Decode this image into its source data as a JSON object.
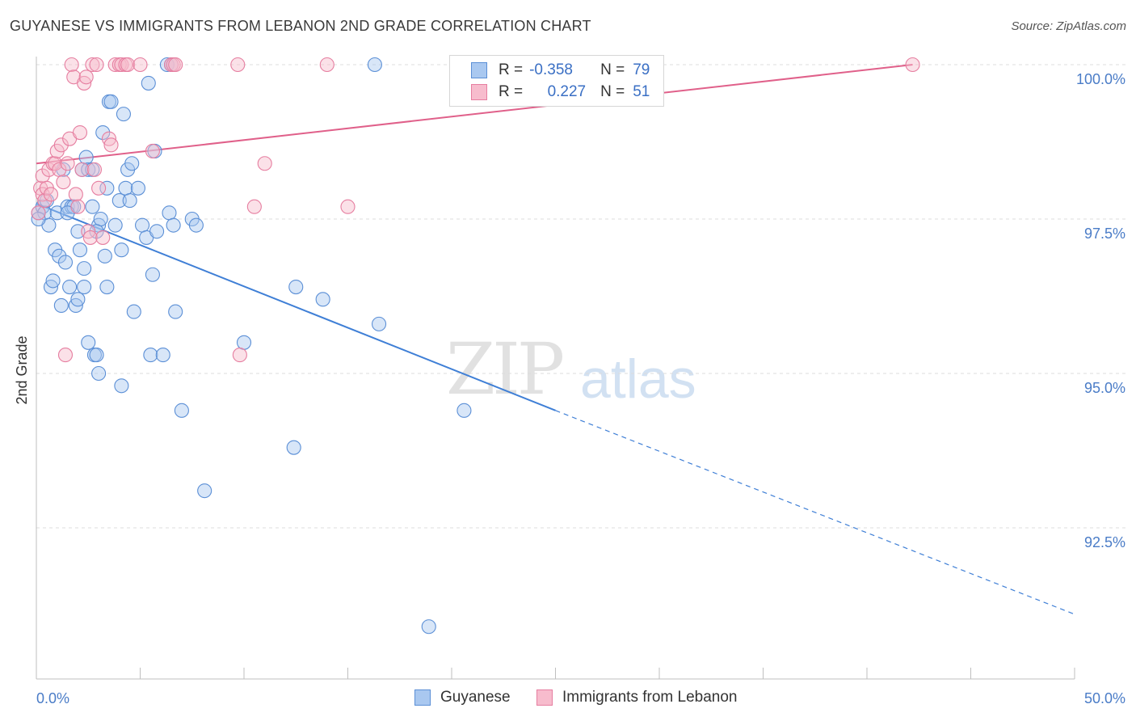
{
  "title": "GUYANESE VS IMMIGRANTS FROM LEBANON 2ND GRADE CORRELATION CHART",
  "source": "Source: ZipAtlas.com",
  "watermark": {
    "zip": "ZIP",
    "atlas": "atlas"
  },
  "legend": {
    "r_label": "R =",
    "n_label": "N =",
    "rows": [
      {
        "r": "-0.358",
        "n": "79",
        "color": "#a9c8f0",
        "border": "#5b8fd6"
      },
      {
        "r": "0.227",
        "n": "51",
        "color": "#f7bccd",
        "border": "#e67ea0"
      }
    ]
  },
  "bottom_legend": [
    {
      "label": "Guyanese",
      "color": "#a9c8f0",
      "border": "#5b8fd6"
    },
    {
      "label": "Immigrants from Lebanon",
      "color": "#f7bccd",
      "border": "#e67ea0"
    }
  ],
  "chart_data": {
    "type": "scatter",
    "title": "GUYANESE VS IMMIGRANTS FROM LEBANON 2ND GRADE CORRELATION CHART",
    "xlabel": "",
    "ylabel": "2nd Grade",
    "xlim": [
      0,
      50
    ],
    "ylim": [
      90.2,
      100.4
    ],
    "x_tick_labels": [
      "0.0%",
      "50.0%"
    ],
    "y_ticks": [
      92.5,
      95.0,
      97.5,
      100.0
    ],
    "y_tick_labels": [
      "92.5%",
      "95.0%",
      "97.5%",
      "100.0%"
    ],
    "grid": true,
    "legend_position": "top-center",
    "series": [
      {
        "name": "Guyanese",
        "color": "#5b8fd6",
        "fill": "#a9c8f0",
        "trend": {
          "x0": 0,
          "y0": 97.75,
          "x1": 25,
          "y1": 94.4,
          "dashed_to_x": 50,
          "dashed_to_y": 91.1,
          "color": "#3f7fd6"
        },
        "points": [
          [
            0.1,
            97.6
          ],
          [
            0.3,
            97.7
          ],
          [
            0.4,
            97.6
          ],
          [
            0.5,
            97.8
          ],
          [
            0.6,
            97.4
          ],
          [
            0.7,
            96.4
          ],
          [
            0.8,
            96.5
          ],
          [
            0.9,
            97.0
          ],
          [
            1.0,
            97.6
          ],
          [
            1.1,
            96.9
          ],
          [
            1.2,
            96.1
          ],
          [
            1.3,
            98.3
          ],
          [
            1.4,
            96.8
          ],
          [
            1.5,
            97.7
          ],
          [
            1.6,
            96.4
          ],
          [
            1.7,
            97.7
          ],
          [
            1.8,
            97.7
          ],
          [
            1.9,
            96.1
          ],
          [
            2.0,
            96.2
          ],
          [
            2.0,
            97.3
          ],
          [
            2.1,
            97.0
          ],
          [
            2.2,
            98.3
          ],
          [
            2.3,
            96.4
          ],
          [
            2.3,
            96.7
          ],
          [
            2.4,
            98.5
          ],
          [
            2.5,
            98.3
          ],
          [
            2.5,
            95.5
          ],
          [
            2.7,
            98.3
          ],
          [
            2.7,
            97.7
          ],
          [
            2.8,
            95.3
          ],
          [
            2.9,
            95.3
          ],
          [
            3.0,
            95.0
          ],
          [
            3.0,
            97.4
          ],
          [
            3.1,
            97.5
          ],
          [
            3.2,
            98.9
          ],
          [
            3.3,
            96.9
          ],
          [
            3.4,
            98.0
          ],
          [
            3.4,
            96.4
          ],
          [
            3.5,
            99.4
          ],
          [
            3.6,
            99.4
          ],
          [
            3.8,
            97.4
          ],
          [
            4.0,
            97.8
          ],
          [
            4.1,
            97.0
          ],
          [
            4.1,
            94.8
          ],
          [
            4.2,
            99.2
          ],
          [
            4.3,
            98.0
          ],
          [
            4.4,
            98.3
          ],
          [
            4.5,
            97.8
          ],
          [
            4.6,
            98.4
          ],
          [
            4.7,
            96.0
          ],
          [
            4.9,
            98.0
          ],
          [
            5.1,
            97.4
          ],
          [
            5.3,
            97.2
          ],
          [
            5.4,
            99.7
          ],
          [
            5.5,
            95.3
          ],
          [
            5.6,
            96.6
          ],
          [
            5.7,
            98.6
          ],
          [
            5.8,
            97.3
          ],
          [
            6.1,
            95.3
          ],
          [
            6.3,
            100.0
          ],
          [
            6.4,
            97.6
          ],
          [
            6.5,
            100.0
          ],
          [
            6.6,
            97.4
          ],
          [
            6.7,
            96.0
          ],
          [
            7.0,
            94.4
          ],
          [
            7.5,
            97.5
          ],
          [
            7.7,
            97.4
          ],
          [
            8.1,
            93.1
          ],
          [
            10.0,
            95.5
          ],
          [
            12.5,
            96.4
          ],
          [
            13.8,
            96.2
          ],
          [
            12.4,
            93.8
          ],
          [
            16.3,
            100.0
          ],
          [
            16.5,
            95.8
          ],
          [
            18.9,
            90.9
          ],
          [
            20.6,
            94.4
          ],
          [
            0.1,
            97.5
          ],
          [
            1.5,
            97.6
          ],
          [
            2.9,
            97.3
          ]
        ]
      },
      {
        "name": "Immigrants from Lebanon",
        "color": "#e67ea0",
        "fill": "#f7bccd",
        "trend": {
          "x0": 0,
          "y0": 98.4,
          "x1": 42.2,
          "y1": 100.0,
          "color": "#e0608a"
        },
        "points": [
          [
            0.1,
            97.6
          ],
          [
            0.2,
            98.0
          ],
          [
            0.3,
            98.2
          ],
          [
            0.3,
            97.9
          ],
          [
            0.4,
            97.8
          ],
          [
            0.5,
            98.0
          ],
          [
            0.6,
            98.3
          ],
          [
            0.7,
            97.9
          ],
          [
            0.8,
            98.4
          ],
          [
            0.9,
            98.4
          ],
          [
            1.0,
            98.6
          ],
          [
            1.1,
            98.3
          ],
          [
            1.2,
            98.7
          ],
          [
            1.3,
            98.1
          ],
          [
            1.4,
            95.3
          ],
          [
            1.5,
            98.4
          ],
          [
            1.6,
            98.8
          ],
          [
            1.7,
            100.0
          ],
          [
            1.8,
            99.8
          ],
          [
            1.9,
            97.9
          ],
          [
            2.0,
            97.7
          ],
          [
            2.1,
            98.9
          ],
          [
            2.2,
            98.3
          ],
          [
            2.3,
            99.7
          ],
          [
            2.4,
            99.8
          ],
          [
            2.5,
            97.3
          ],
          [
            2.6,
            97.2
          ],
          [
            2.7,
            100.0
          ],
          [
            2.8,
            98.3
          ],
          [
            2.9,
            100.0
          ],
          [
            3.0,
            98.0
          ],
          [
            3.2,
            97.2
          ],
          [
            3.5,
            98.8
          ],
          [
            3.6,
            98.7
          ],
          [
            3.8,
            100.0
          ],
          [
            4.0,
            100.0
          ],
          [
            4.1,
            100.0
          ],
          [
            4.3,
            100.0
          ],
          [
            4.4,
            100.0
          ],
          [
            5.0,
            100.0
          ],
          [
            5.6,
            98.6
          ],
          [
            6.5,
            100.0
          ],
          [
            6.6,
            100.0
          ],
          [
            6.7,
            100.0
          ],
          [
            9.7,
            100.0
          ],
          [
            9.8,
            95.3
          ],
          [
            10.5,
            97.7
          ],
          [
            11.0,
            98.4
          ],
          [
            14.0,
            100.0
          ],
          [
            15.0,
            97.7
          ],
          [
            42.2,
            100.0
          ]
        ]
      }
    ]
  }
}
